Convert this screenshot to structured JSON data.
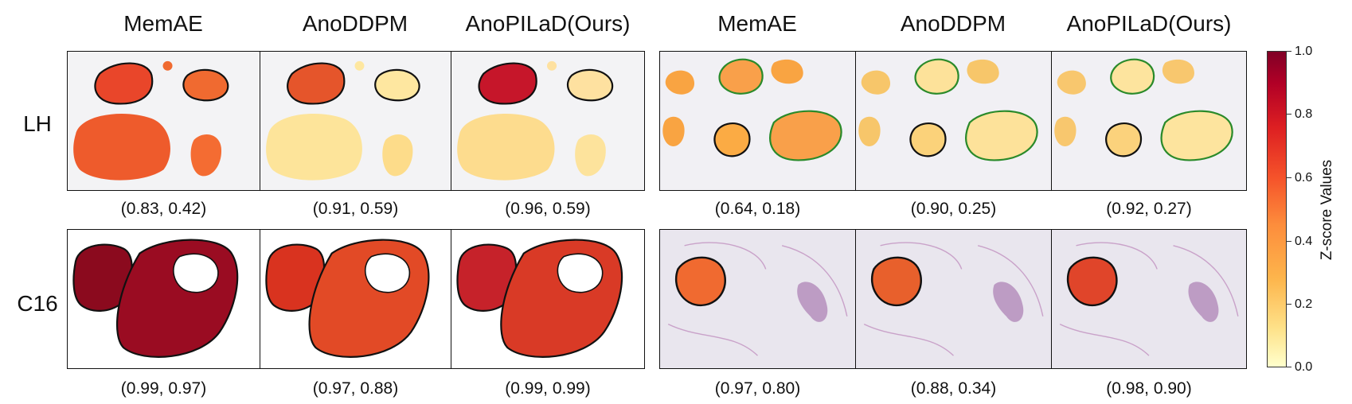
{
  "columns": [
    "MemAE",
    "AnoDDPM",
    "AnoPILaD(Ours)",
    "MemAE",
    "AnoDDPM",
    "AnoPILaD(Ours)"
  ],
  "rows": [
    {
      "label": "LH",
      "metrics": [
        "(0.83, 0.42)",
        "(0.91, 0.59)",
        "(0.96, 0.59)",
        "(0.64, 0.18)",
        "(0.90, 0.25)",
        "(0.92, 0.27)"
      ]
    },
    {
      "label": "C16",
      "metrics": [
        "(0.99, 0.97)",
        "(0.97, 0.88)",
        "(0.99, 0.99)",
        "(0.97, 0.80)",
        "(0.88, 0.34)",
        "(0.98, 0.90)"
      ]
    }
  ],
  "colorbar": {
    "title": "Z-score Values",
    "ticks": [
      "1.0",
      "0.8",
      "0.6",
      "0.4",
      "0.2",
      "0.0"
    ],
    "colormap": [
      "#ffffcc",
      "#fee28a",
      "#fdb54c",
      "#fd8d3c",
      "#f5532a",
      "#dd1f22",
      "#b10026",
      "#800026"
    ]
  }
}
